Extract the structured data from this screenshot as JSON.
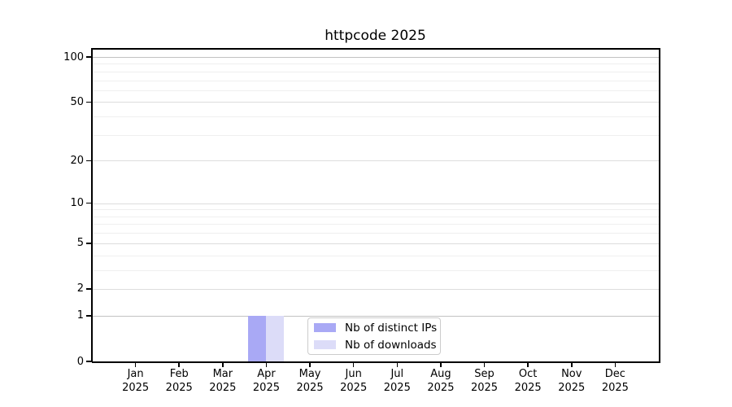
{
  "chart_data": {
    "type": "bar",
    "title": "httpcode 2025",
    "categories": [
      "Jan\n2025",
      "Feb\n2025",
      "Mar\n2025",
      "Apr\n2025",
      "May\n2025",
      "Jun\n2025",
      "Jul\n2025",
      "Aug\n2025",
      "Sep\n2025",
      "Oct\n2025",
      "Nov\n2025",
      "Dec\n2025"
    ],
    "series": [
      {
        "name": "Nb of distinct IPs",
        "color": "#a9a9f5",
        "values": [
          0,
          0,
          0,
          1,
          0,
          0,
          0,
          0,
          0,
          0,
          0,
          0
        ]
      },
      {
        "name": "Nb of downloads",
        "color": "#dcdcf8",
        "values": [
          0,
          0,
          0,
          1,
          0,
          0,
          0,
          0,
          0,
          0,
          0,
          0
        ]
      }
    ],
    "xlabel": "",
    "ylabel": "",
    "y_axis": {
      "scale": "log(1+y)",
      "major_ticks": [
        0,
        1,
        2,
        5,
        10,
        20,
        50,
        100
      ],
      "minor_gridlines": [
        3,
        4,
        6,
        7,
        8,
        9,
        30,
        40,
        60,
        70,
        80,
        90
      ],
      "strong_gridlines": [
        1,
        100
      ],
      "top_value": 100
    },
    "grid": true,
    "legend": {
      "position": "lower center",
      "border_color": "#cccccc"
    },
    "colors": {
      "background": "#ffffff",
      "spine": "#000000"
    }
  }
}
